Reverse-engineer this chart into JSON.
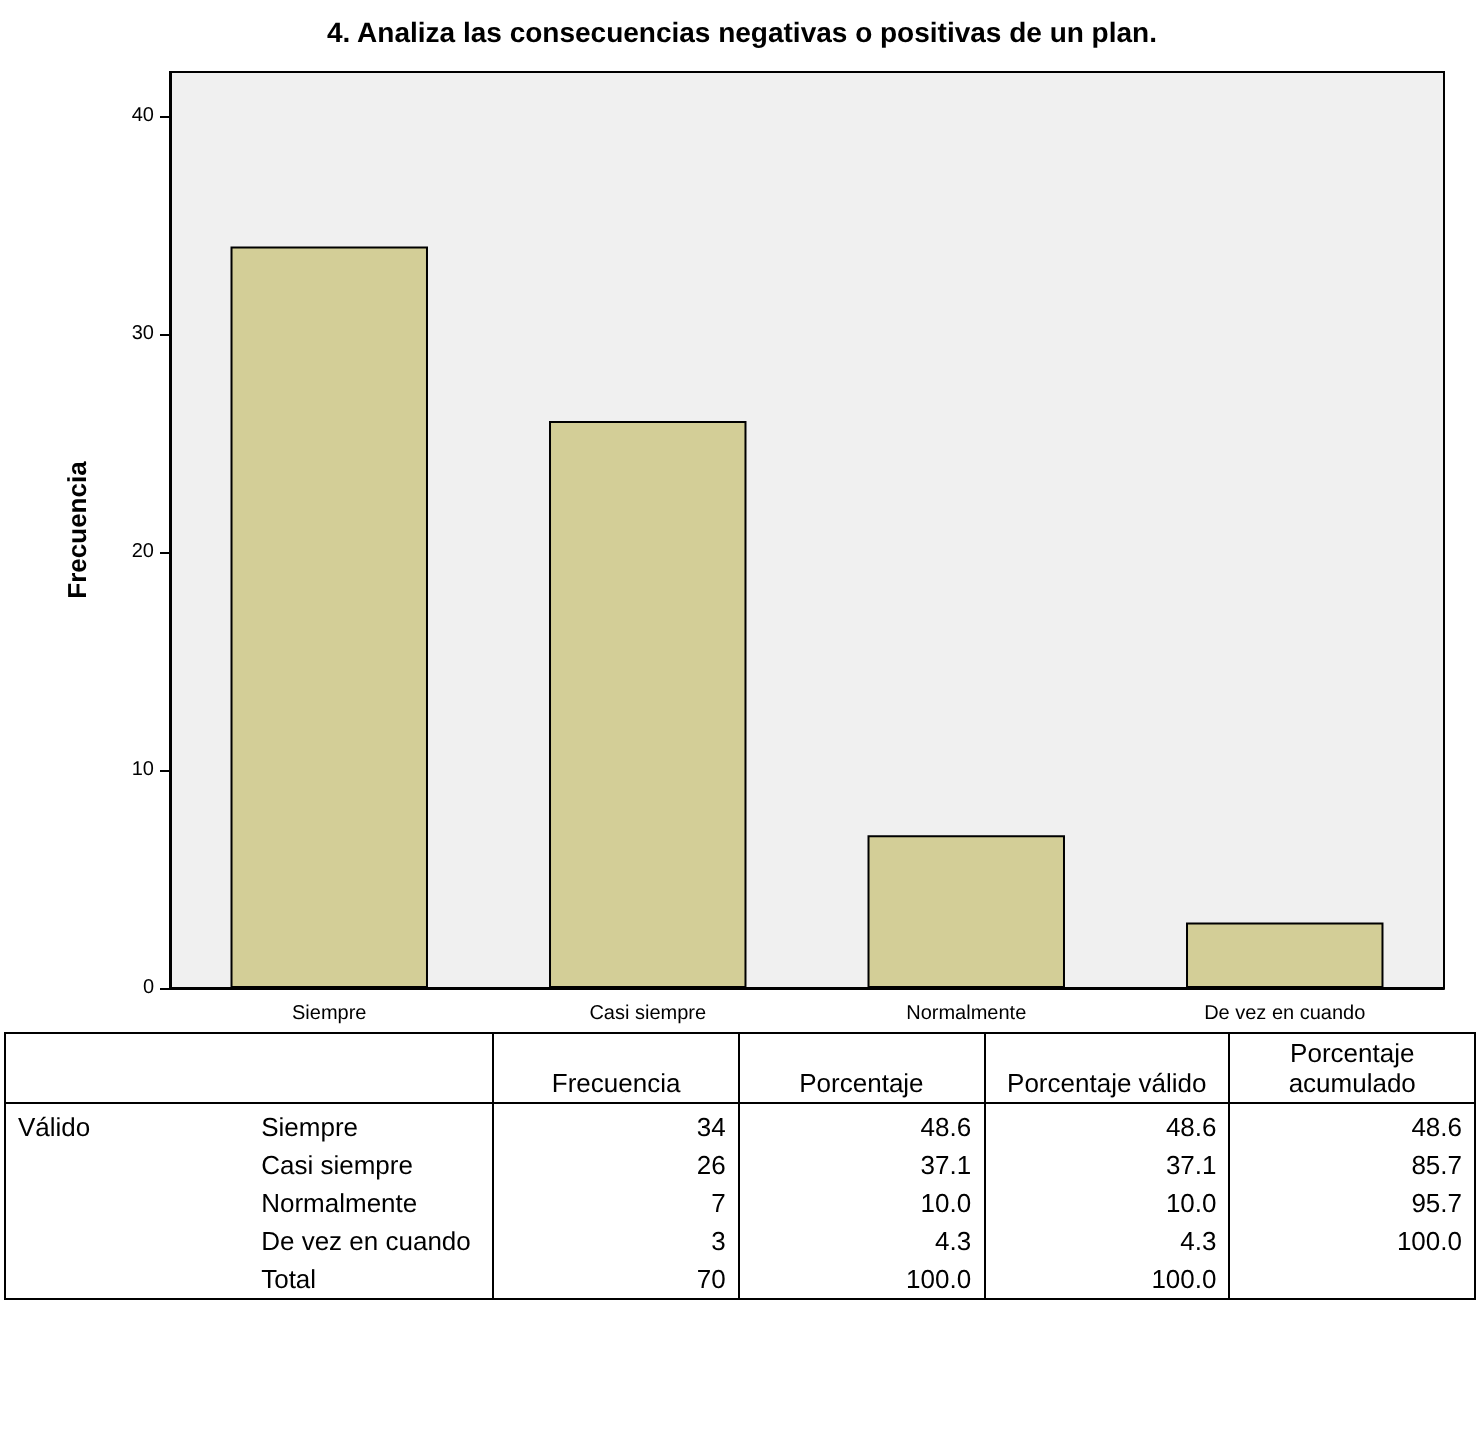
{
  "chart_data": [
    {
      "type": "bar",
      "title": "4. Analiza las consecuencias negativas o positivas de un plan.",
      "ylabel": "Frecuencia",
      "categories": [
        "Siempre",
        "Casi siempre",
        "Normalmente",
        "De vez en cuando"
      ],
      "values": [
        34,
        26,
        7,
        3
      ],
      "color": "#d3ce97",
      "ylim": [
        0,
        42
      ],
      "yticks": [
        0,
        10,
        20,
        30,
        40
      ],
      "grid": false
    },
    {
      "type": "other",
      "categories": [
        null,
        null,
        "Frecuencia",
        "Porcentaje",
        "Porcentaje válido",
        "Porcentaje acumulado"
      ],
      "y_categories": [
        "Siempre",
        "Casi siempre",
        "Normalmente",
        "De vez en cuando",
        "Total"
      ],
      "annotations": [
        "Válido"
      ],
      "cell_labels": [
        [
          "34",
          "48.6",
          "48.6",
          "48.6"
        ],
        [
          "26",
          "37.1",
          "37.1",
          "85.7"
        ],
        [
          "7",
          "10.0",
          "10.0",
          "95.7"
        ],
        [
          "3",
          "4.3",
          "4.3",
          "100.0"
        ],
        [
          "70",
          "100.0",
          "100.0",
          null
        ]
      ]
    }
  ]
}
